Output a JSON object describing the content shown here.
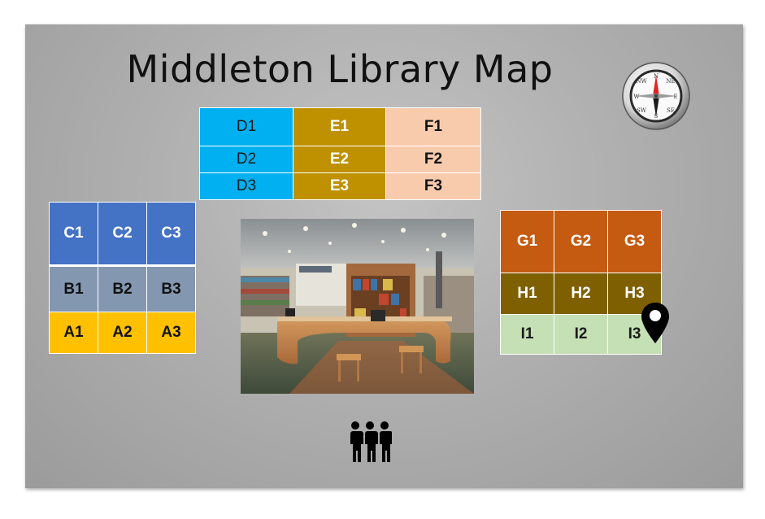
{
  "title": "Middleton Library Map",
  "grid_def": {
    "rows": [
      [
        "D1",
        "E1",
        "F1"
      ],
      [
        "D2",
        "E2",
        "F2"
      ],
      [
        "D3",
        "E3",
        "F3"
      ]
    ]
  },
  "grid_abc": {
    "rows": [
      [
        "C1",
        "C2",
        "C3"
      ],
      [
        "B1",
        "B2",
        "B3"
      ],
      [
        "A1",
        "A2",
        "A3"
      ]
    ]
  },
  "grid_ghi": {
    "rows": [
      [
        "G1",
        "G2",
        "G3"
      ],
      [
        "H1",
        "H2",
        "H3"
      ],
      [
        "I1",
        "I2",
        "I3"
      ]
    ]
  },
  "compass": {
    "labels": [
      "N",
      "NE",
      "E",
      "SE",
      "S",
      "SW",
      "W",
      "NW"
    ]
  },
  "icons": {
    "compass": "compass-icon",
    "pin": "location-pin-icon",
    "people": "people-group-icon",
    "photo": "library-information-desk-photo"
  },
  "colors": {
    "D": "#00b0f0",
    "E": "#bf9000",
    "F": "#f8cbad",
    "C": "#4472c4",
    "B": "#8497b0",
    "A": "#ffc000",
    "G": "#c55a11",
    "H": "#7f6000",
    "I": "#c5e0b4"
  }
}
